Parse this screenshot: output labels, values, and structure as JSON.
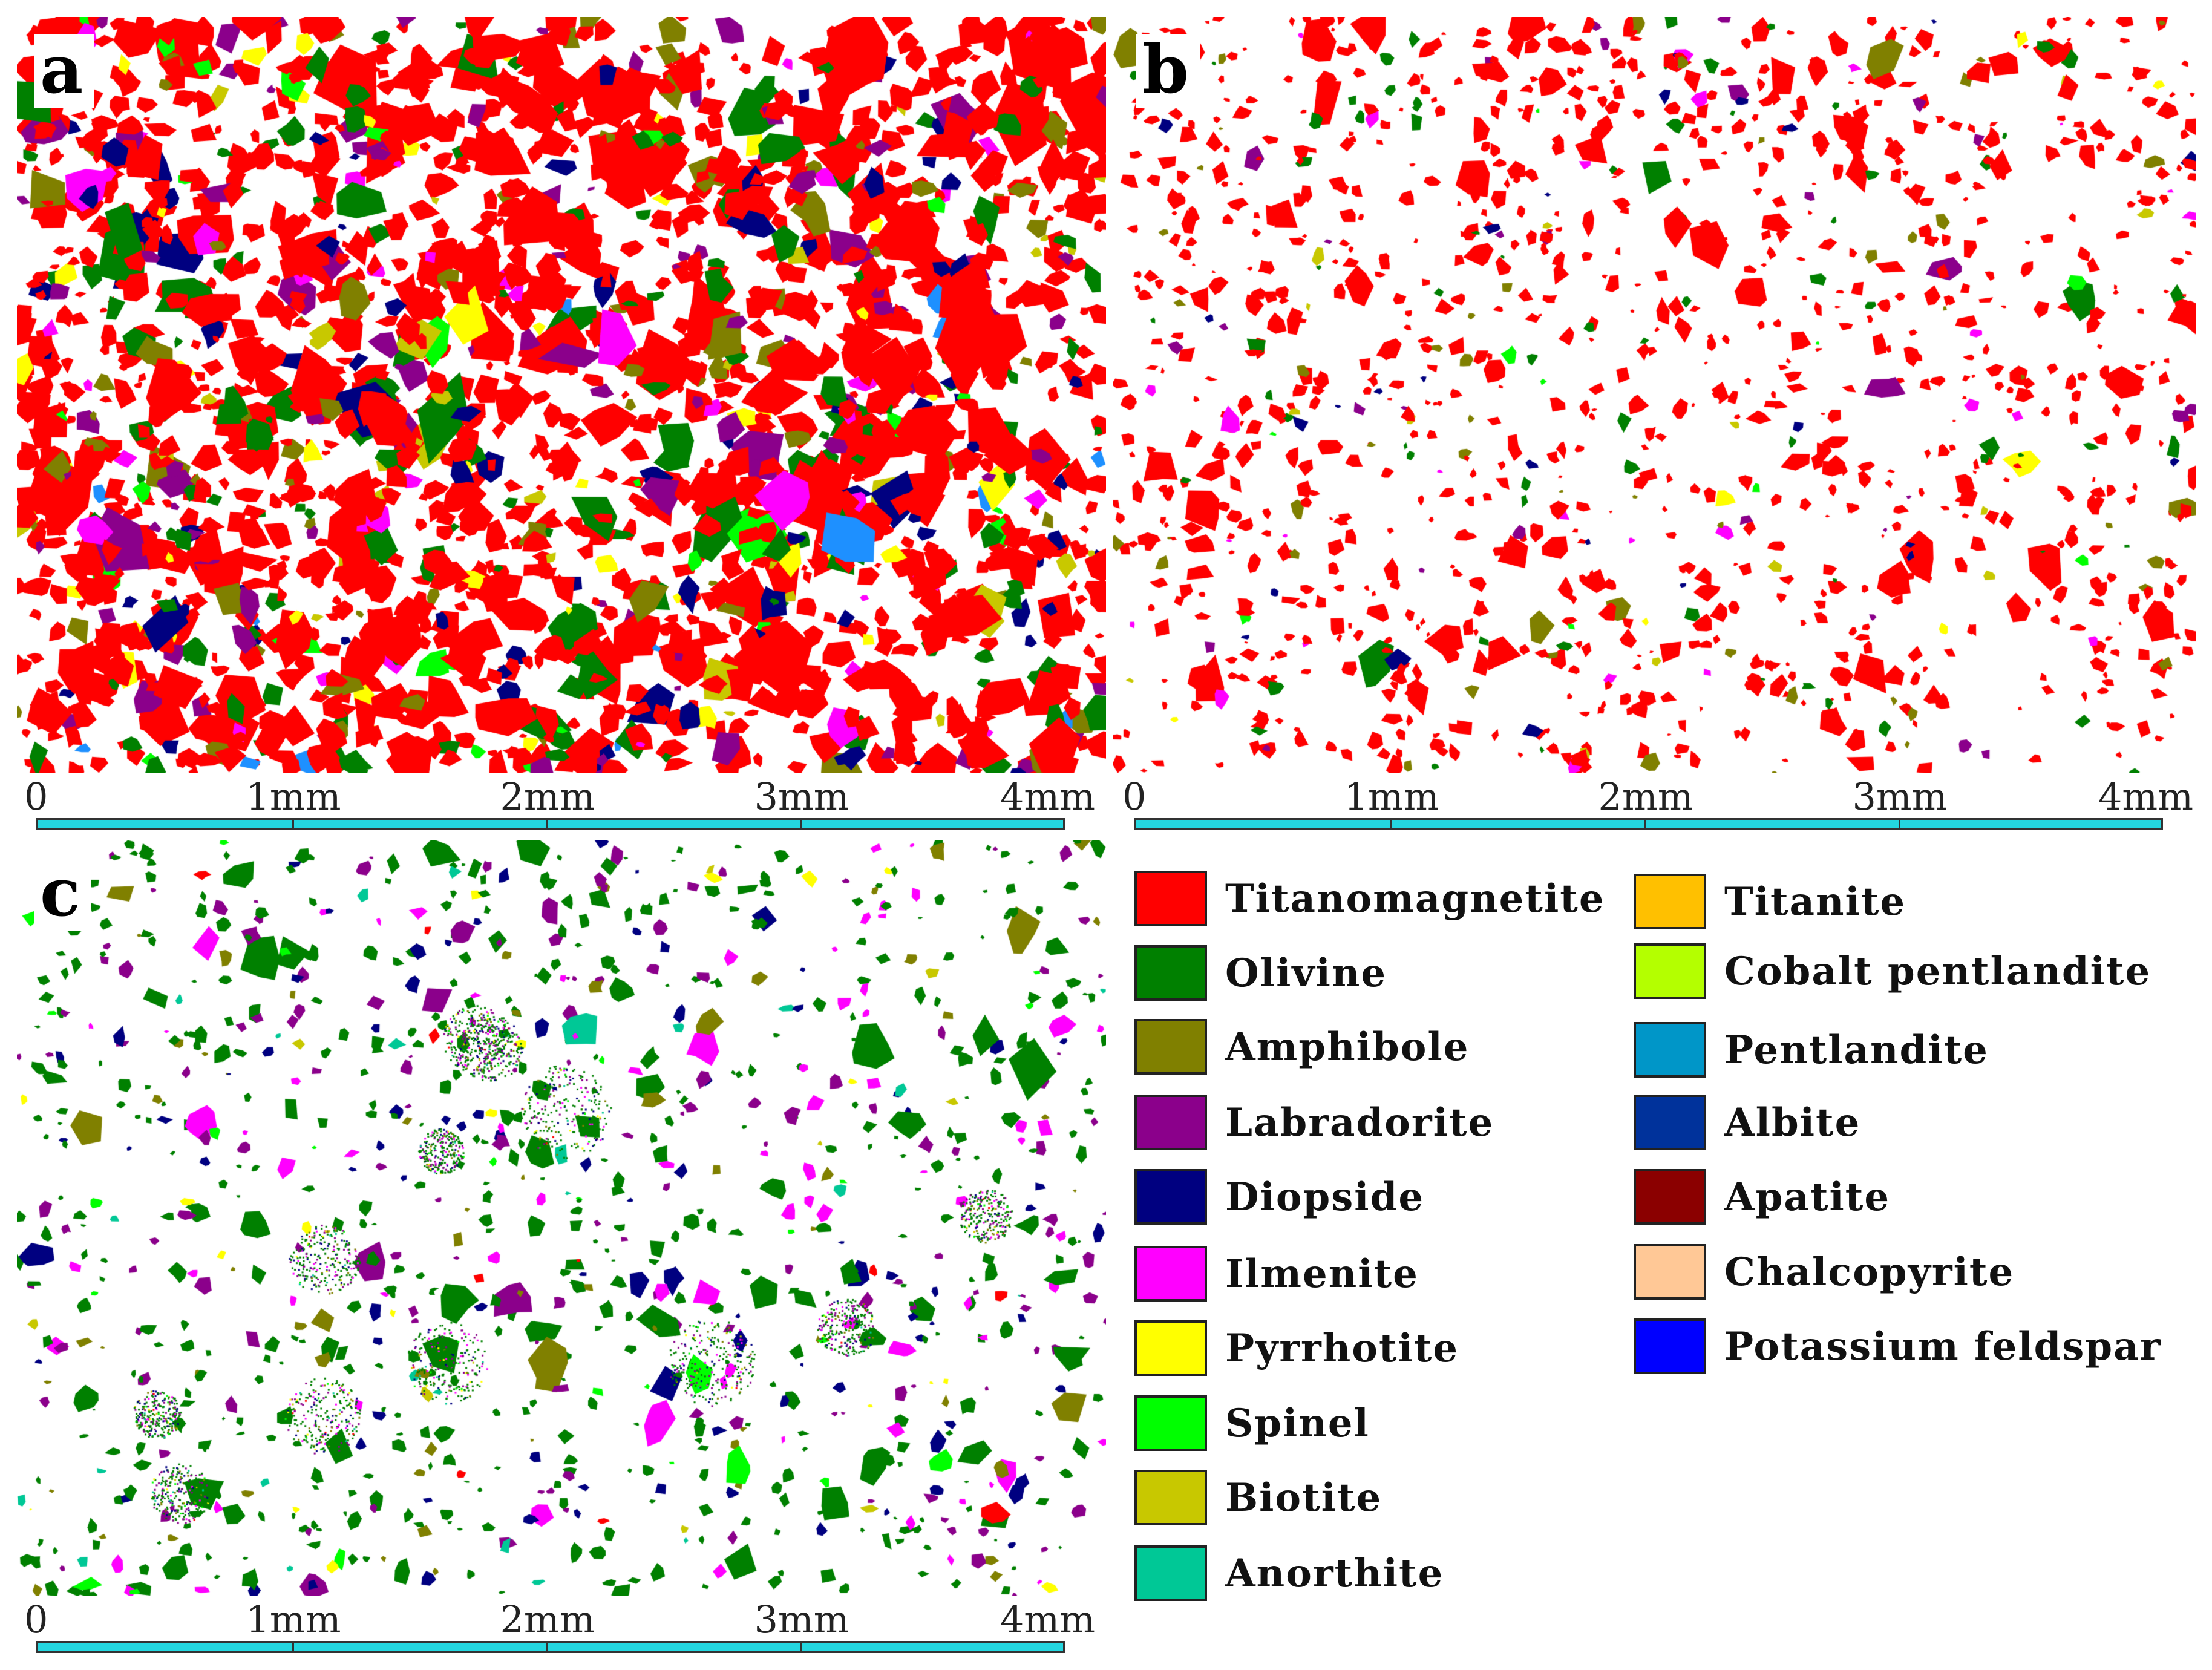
{
  "panels": [
    {
      "letter": "a",
      "dominant": "#ff0000",
      "mix": [
        {
          "color": "#ff0000",
          "weight": 70
        },
        {
          "color": "#008000",
          "weight": 8
        },
        {
          "color": "#808000",
          "weight": 4
        },
        {
          "color": "#8b008b",
          "weight": 5
        },
        {
          "color": "#000080",
          "weight": 4
        },
        {
          "color": "#ff00ff",
          "weight": 2
        },
        {
          "color": "#ffff00",
          "weight": 2
        },
        {
          "color": "#00ff00",
          "weight": 1
        },
        {
          "color": "#c8c800",
          "weight": 2
        },
        {
          "color": "#1e90ff",
          "weight": 1
        }
      ],
      "density": 0.9,
      "scale": {
        "ticks": [
          "0",
          "1mm",
          "2mm",
          "3mm",
          "4mm"
        ]
      }
    },
    {
      "letter": "b",
      "dominant": "#ff0000",
      "mix": [
        {
          "color": "#ff0000",
          "weight": 80
        },
        {
          "color": "#008000",
          "weight": 6
        },
        {
          "color": "#808000",
          "weight": 4
        },
        {
          "color": "#8b008b",
          "weight": 3
        },
        {
          "color": "#000080",
          "weight": 2
        },
        {
          "color": "#ff00ff",
          "weight": 2
        },
        {
          "color": "#ffff00",
          "weight": 1
        },
        {
          "color": "#00ff00",
          "weight": 1
        },
        {
          "color": "#c8c800",
          "weight": 1
        }
      ],
      "density": 0.5,
      "scale": {
        "ticks": [
          "0",
          "1mm",
          "2mm",
          "3mm",
          "4mm"
        ]
      }
    },
    {
      "letter": "c",
      "dominant": "#008000",
      "mix": [
        {
          "color": "#008000",
          "weight": 55
        },
        {
          "color": "#8b008b",
          "weight": 14
        },
        {
          "color": "#000080",
          "weight": 10
        },
        {
          "color": "#ff00ff",
          "weight": 7
        },
        {
          "color": "#808000",
          "weight": 6
        },
        {
          "color": "#ffff00",
          "weight": 2
        },
        {
          "color": "#00c896",
          "weight": 2
        },
        {
          "color": "#00ff00",
          "weight": 2
        },
        {
          "color": "#ff0000",
          "weight": 1
        },
        {
          "color": "#c8c800",
          "weight": 1
        }
      ],
      "density": 0.42,
      "scale": {
        "ticks": [
          "0",
          "1mm",
          "2mm",
          "3mm",
          "4mm"
        ]
      }
    }
  ],
  "legend": {
    "left_column": [
      {
        "label": "Titanomagnetite",
        "color": "#ff0000"
      },
      {
        "label": "Olivine",
        "color": "#008000"
      },
      {
        "label": "Amphibole",
        "color": "#808000"
      },
      {
        "label": "Labradorite",
        "color": "#8b008b"
      },
      {
        "label": "Diopside",
        "color": "#000080"
      },
      {
        "label": "Ilmenite",
        "color": "#ff00ff"
      },
      {
        "label": "Pyrrhotite",
        "color": "#ffff00"
      },
      {
        "label": "Spinel",
        "color": "#00ff00"
      },
      {
        "label": "Biotite",
        "color": "#c8c800"
      },
      {
        "label": "Anorthite",
        "color": "#00c896"
      }
    ],
    "right_column": [
      {
        "label": "Titanite",
        "color": "#ffc000"
      },
      {
        "label": "Cobalt pentlandite",
        "color": "#b4ff00"
      },
      {
        "label": "Pentlandite",
        "color": "#0096c8"
      },
      {
        "label": "Albite",
        "color": "#00329b"
      },
      {
        "label": "Apatite",
        "color": "#8b0000"
      },
      {
        "label": "Chalcopyrite",
        "color": "#ffc896"
      },
      {
        "label": "Potassium feldspar",
        "color": "#0000ff"
      }
    ]
  }
}
